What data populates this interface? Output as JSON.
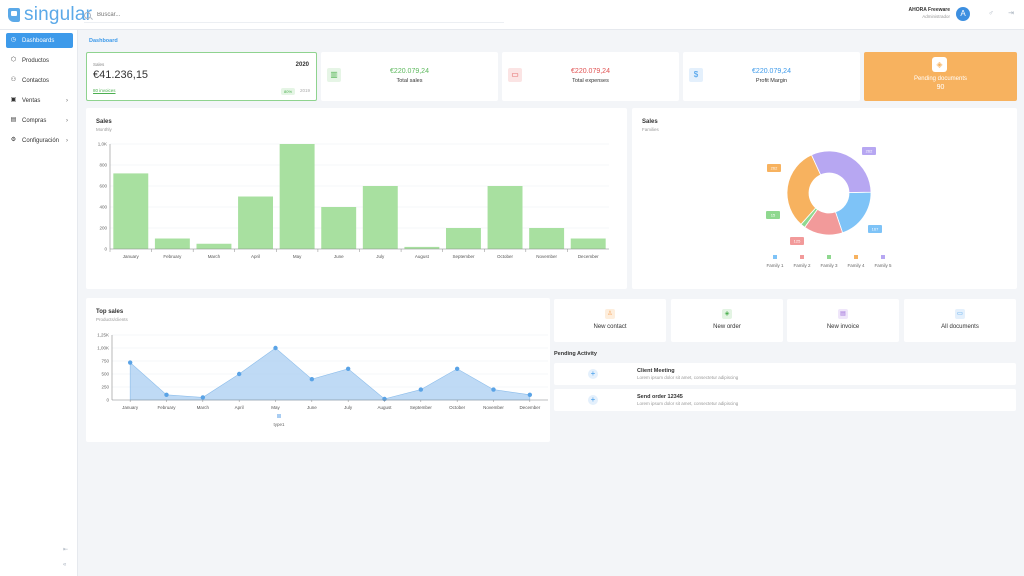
{
  "app": {
    "logo": "singular"
  },
  "search": {
    "placeholder": "Buscar..."
  },
  "user": {
    "name": "AHORA Freeware",
    "role": "Administrador",
    "initial": "A"
  },
  "sidebar": {
    "items": [
      {
        "label": "Dashboards",
        "icon": "clock-icon",
        "active": true
      },
      {
        "label": "Productos",
        "icon": "tag-icon"
      },
      {
        "label": "Contactos",
        "icon": "users-icon"
      },
      {
        "label": "Ventas",
        "icon": "cart-icon",
        "chevron": true
      },
      {
        "label": "Compras",
        "icon": "briefcase-icon",
        "chevron": true
      },
      {
        "label": "Configuración",
        "icon": "gear-icon",
        "chevron": true
      }
    ]
  },
  "breadcrumb": "Dashboard",
  "sales_card": {
    "label": "Sales",
    "value": "€41.236,15",
    "year": "2020",
    "link": "80 invoices",
    "percent": "80%",
    "year2": "2019"
  },
  "kpis": [
    {
      "value": "€220.079,24",
      "label": "Total sales",
      "icon": "store-icon",
      "color": "#5cb85c",
      "bg": "#e6f5e6"
    },
    {
      "value": "€220.079,24",
      "label": "Total expenses",
      "icon": "credit-card-icon",
      "color": "#e05252",
      "bg": "#fbe4e4"
    },
    {
      "value": "€220.079,24",
      "label": "Profit Margin",
      "icon": "dollar-icon",
      "color": "#3d9aea",
      "bg": "#e4f0fc"
    }
  ],
  "pending": {
    "label": "Pending documents",
    "count": "90"
  },
  "sales_chart": {
    "title": "Sales",
    "subtitle": "Monthly"
  },
  "families_chart": {
    "title": "Sales",
    "subtitle": "Families"
  },
  "top_sales": {
    "title": "Top sales",
    "subtitle": "Products/clients"
  },
  "chart_data": [
    {
      "type": "bar",
      "title": "Sales",
      "subtitle": "Monthly",
      "categories": [
        "January",
        "February",
        "March",
        "April",
        "May",
        "June",
        "July",
        "August",
        "September",
        "October",
        "November",
        "December"
      ],
      "values": [
        720,
        100,
        50,
        500,
        1000,
        400,
        600,
        20,
        200,
        600,
        200,
        100
      ],
      "ylim": [
        0,
        1000
      ],
      "yticks": [
        "0",
        "200",
        "400",
        "600",
        "800",
        "1,0K"
      ],
      "color": "#a8e0a0",
      "grid": true
    },
    {
      "type": "pie",
      "title": "Sales",
      "subtitle": "Families",
      "labels": [
        "Family 1",
        "Family 2",
        "Family 3",
        "Family 4",
        "Family 5"
      ],
      "values": [
        167,
        125,
        15,
        262,
        262
      ],
      "slice_labels": [
        "167",
        "125",
        "15",
        "262",
        "262"
      ],
      "colors": [
        "#7ec3f7",
        "#f29a9a",
        "#8fd88f",
        "#f7b25f",
        "#b7a7f2"
      ],
      "legend": "bottom"
    },
    {
      "type": "area",
      "title": "Top sales",
      "subtitle": "Products/clients",
      "categories": [
        "January",
        "February",
        "March",
        "April",
        "May",
        "June",
        "July",
        "August",
        "September",
        "October",
        "November",
        "December"
      ],
      "series": [
        {
          "name": "type1",
          "values": [
            720,
            100,
            50,
            500,
            1000,
            400,
            600,
            20,
            200,
            600,
            200,
            100
          ]
        }
      ],
      "ylim": [
        0,
        1250
      ],
      "yticks": [
        "0",
        "250",
        "500",
        "750",
        "1,00K",
        "1,25K"
      ],
      "color": "#a9cdf2",
      "legend": "bottom"
    }
  ],
  "quick_actions": [
    {
      "label": "New contact",
      "icon": "user-icon",
      "color": "#f7a55f",
      "bg": "#fdeedd"
    },
    {
      "label": "New order",
      "icon": "box-icon",
      "color": "#4caf50",
      "bg": "#e3f4e3"
    },
    {
      "label": "New invoice",
      "icon": "document-icon",
      "color": "#9b6bd8",
      "bg": "#efe6fa"
    },
    {
      "label": "All documents",
      "icon": "folder-icon",
      "color": "#3d9aea",
      "bg": "#e4f0fc"
    }
  ],
  "pending_activity": {
    "title": "Pending Activity",
    "items": [
      {
        "title": "Client Meeting",
        "desc": "Lorem ipsum dolor sit amet, consectetur adipiscing"
      },
      {
        "title": "Send order 12345",
        "desc": "Lorem ipsum dolor sit amet, consectetur adipiscing"
      }
    ]
  }
}
